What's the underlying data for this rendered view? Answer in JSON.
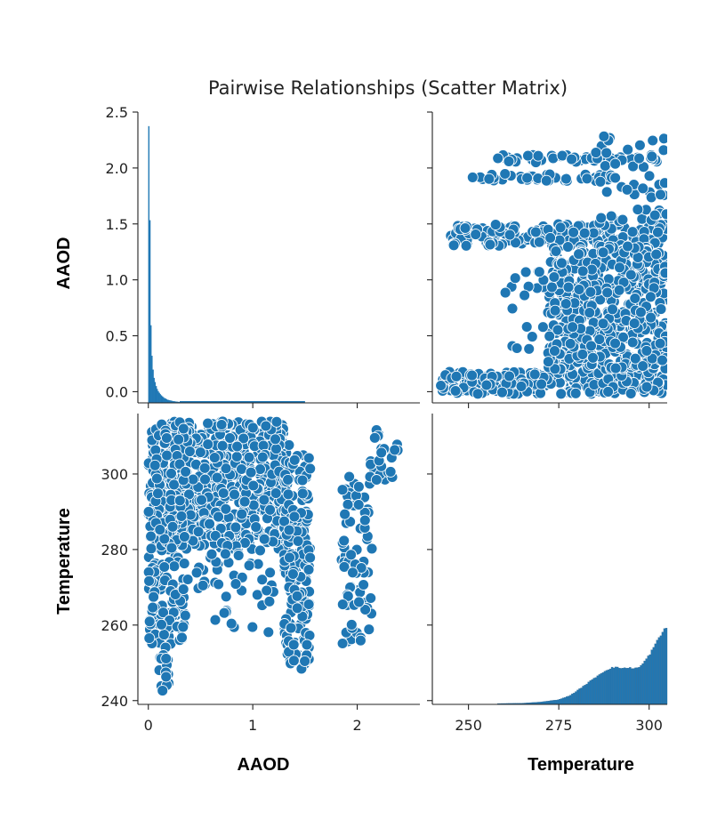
{
  "title": "Pairwise Relationships (Scatter Matrix)",
  "colors": {
    "marker": "#1f77b4",
    "edge": "#ffffff",
    "hist": "#1f77b4",
    "axis": "#222222"
  },
  "chart_data": [
    {
      "type": "bar",
      "panel": "AAOD-histogram",
      "xlabel": "",
      "ylabel": "AAOD",
      "xlim": [
        -0.1,
        2.6
      ],
      "ylim": [
        -0.1,
        2.5
      ],
      "x_ticks": [
        0,
        1,
        2
      ],
      "y_ticks": [
        "0.0",
        "0.5",
        "1.0",
        "1.5",
        "2.0",
        "2.5"
      ],
      "bin_edges_start": 0.0,
      "bin_width": 0.01,
      "relative_counts": [
        1.0,
        0.66,
        0.28,
        0.17,
        0.12,
        0.09,
        0.075,
        0.06,
        0.05,
        0.042,
        0.036,
        0.031,
        0.027,
        0.023,
        0.02,
        0.017,
        0.015,
        0.013,
        0.011,
        0.01,
        0.009,
        0.008,
        0.007,
        0.006,
        0.0055,
        0.005,
        0.0045,
        0.004,
        0.0035,
        0.003
      ]
    },
    {
      "type": "scatter",
      "panel": "AAOD-vs-Temperature",
      "xlabel": "",
      "ylabel": "",
      "xlim": [
        240,
        305
      ],
      "ylim": [
        -0.1,
        2.5
      ],
      "x_ticks": [
        250,
        275,
        300
      ],
      "y_ticks": [
        "0.0",
        "0.5",
        "1.0",
        "1.5",
        "2.0",
        "2.5"
      ],
      "clusters": [
        {
          "x": [
            242,
            305
          ],
          "y": [
            -0.02,
            0.18
          ],
          "n": 260
        },
        {
          "x": [
            245,
            305
          ],
          "y": [
            1.3,
            1.5
          ],
          "n": 210
        },
        {
          "x": [
            258,
            305
          ],
          "y": [
            2.05,
            2.12
          ],
          "n": 60
        },
        {
          "x": [
            250,
            290
          ],
          "y": [
            1.88,
            1.95
          ],
          "n": 45
        },
        {
          "x": [
            272,
            305
          ],
          "y": [
            0.2,
            1.3
          ],
          "n": 520
        },
        {
          "x": [
            285,
            305
          ],
          "y": [
            1.5,
            2.3
          ],
          "n": 50
        },
        {
          "x": [
            260,
            285
          ],
          "y": [
            0.3,
            1.1
          ],
          "n": 45
        }
      ]
    },
    {
      "type": "scatter",
      "panel": "Temperature-vs-AAOD",
      "xlabel": "AAOD",
      "ylabel": "Temperature",
      "xlim": [
        -0.1,
        2.6
      ],
      "ylim": [
        239,
        316
      ],
      "x_ticks": [
        0,
        1,
        2
      ],
      "y_ticks": [
        240,
        260,
        280,
        300
      ],
      "clusters": [
        {
          "x": [
            0.0,
            1.35
          ],
          "y": [
            280,
            314
          ],
          "n": 650
        },
        {
          "x": [
            0.0,
            0.35
          ],
          "y": [
            255,
            295
          ],
          "n": 140
        },
        {
          "x": [
            1.3,
            1.55
          ],
          "y": [
            248,
            305
          ],
          "n": 170
        },
        {
          "x": [
            1.85,
            2.15
          ],
          "y": [
            255,
            300
          ],
          "n": 70
        },
        {
          "x": [
            2.1,
            2.4
          ],
          "y": [
            298,
            312
          ],
          "n": 25
        },
        {
          "x": [
            0.25,
            1.2
          ],
          "y": [
            258,
            280
          ],
          "n": 50
        },
        {
          "x": [
            0.1,
            0.2
          ],
          "y": [
            242,
            255
          ],
          "n": 15
        }
      ]
    },
    {
      "type": "area",
      "panel": "Temperature-histogram",
      "xlabel": "Temperature",
      "ylabel": "",
      "xlim": [
        240,
        305
      ],
      "x_ticks": [
        250,
        275,
        300
      ],
      "x": [
        258,
        265,
        270,
        275,
        278,
        280,
        283,
        286,
        288,
        290,
        292,
        295,
        297,
        298,
        300,
        302,
        304,
        305
      ],
      "relative_counts": [
        0.01,
        0.015,
        0.03,
        0.06,
        0.11,
        0.17,
        0.27,
        0.37,
        0.43,
        0.47,
        0.46,
        0.46,
        0.46,
        0.5,
        0.62,
        0.78,
        0.93,
        1.0
      ]
    }
  ]
}
